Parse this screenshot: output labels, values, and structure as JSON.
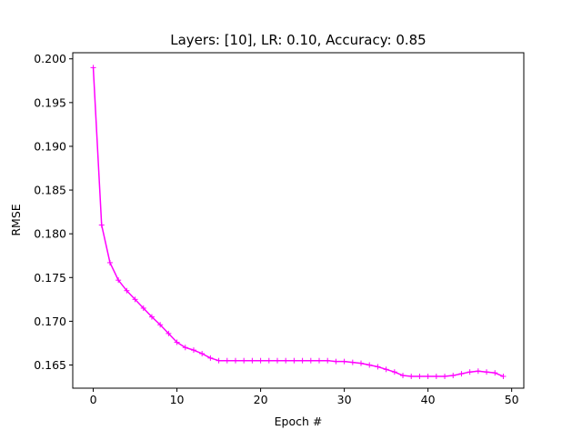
{
  "chart_data": {
    "type": "line",
    "title": "Layers: [10], LR: 0.10, Accuracy: 0.85",
    "xlabel": "Epoch #",
    "ylabel": "RMSE",
    "xlim": [
      -2.45,
      51.45
    ],
    "ylim": [
      0.16235,
      0.2007
    ],
    "xticks": [
      0,
      10,
      20,
      30,
      40,
      50
    ],
    "xtick_labels": [
      "0",
      "10",
      "20",
      "30",
      "40",
      "50"
    ],
    "yticks": [
      0.165,
      0.17,
      0.175,
      0.18,
      0.185,
      0.19,
      0.195,
      0.2
    ],
    "ytick_labels": [
      "0.165",
      "0.170",
      "0.175",
      "0.180",
      "0.185",
      "0.190",
      "0.195",
      "0.200"
    ],
    "grid": false,
    "series": [
      {
        "color": "#ff00ff",
        "marker": "plus",
        "x": [
          0,
          1,
          2,
          3,
          4,
          5,
          6,
          7,
          8,
          9,
          10,
          11,
          12,
          13,
          14,
          15,
          16,
          17,
          18,
          19,
          20,
          21,
          22,
          23,
          24,
          25,
          26,
          27,
          28,
          29,
          30,
          31,
          32,
          33,
          34,
          35,
          36,
          37,
          38,
          39,
          40,
          41,
          42,
          43,
          44,
          45,
          46,
          47,
          48,
          49
        ],
        "y": [
          0.199,
          0.181,
          0.1767,
          0.1747,
          0.1735,
          0.1725,
          0.1715,
          0.1705,
          0.1696,
          0.1686,
          0.1676,
          0.167,
          0.1667,
          0.1663,
          0.1658,
          0.1655,
          0.1655,
          0.1655,
          0.1655,
          0.1655,
          0.1655,
          0.1655,
          0.1655,
          0.1655,
          0.1655,
          0.1655,
          0.1655,
          0.1655,
          0.1655,
          0.1654,
          0.1654,
          0.1653,
          0.1652,
          0.165,
          0.1648,
          0.1645,
          0.1642,
          0.1638,
          0.1637,
          0.1637,
          0.1637,
          0.1637,
          0.1637,
          0.1638,
          0.164,
          0.1642,
          0.1643,
          0.1642,
          0.1641,
          0.1637
        ]
      }
    ]
  }
}
